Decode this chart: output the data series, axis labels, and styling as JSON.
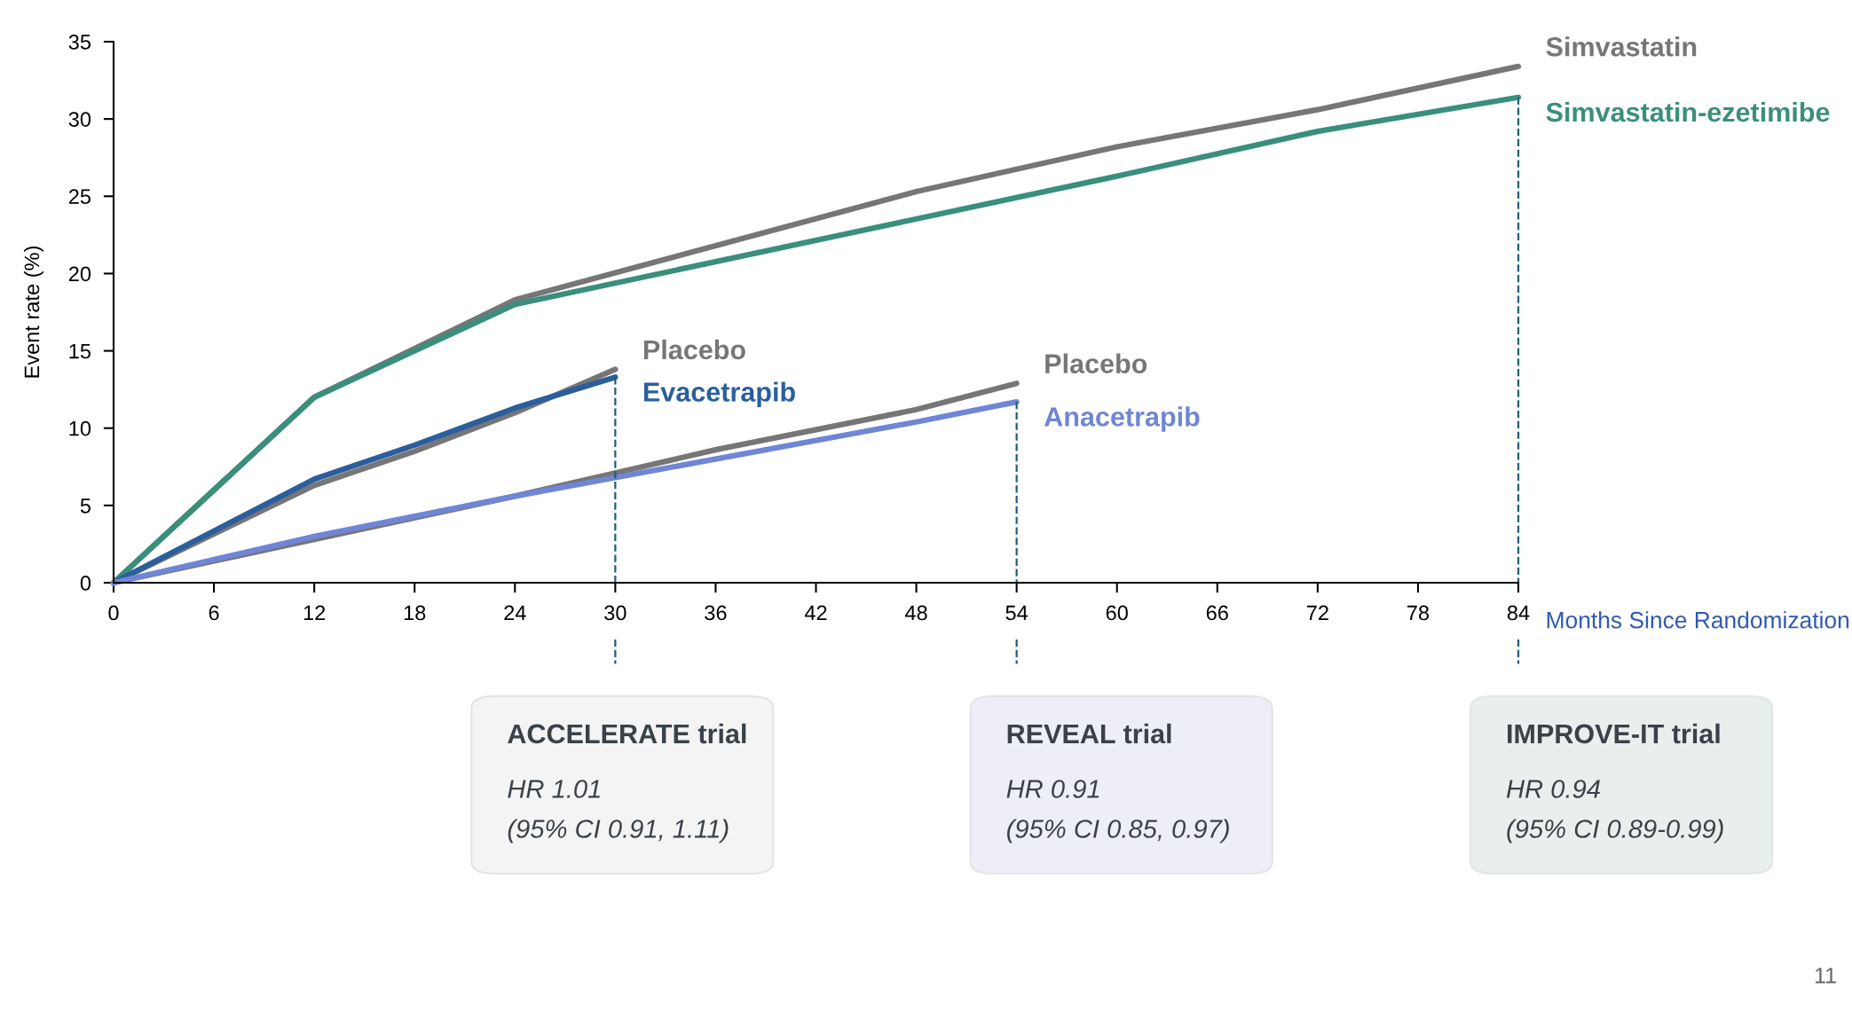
{
  "chart_data": {
    "type": "line",
    "xlabel": "Months Since Randomization",
    "ylabel": "Event rate (%)",
    "xlim": [
      0,
      84
    ],
    "xticks": [
      0,
      6,
      12,
      18,
      24,
      30,
      36,
      42,
      48,
      54,
      60,
      66,
      72,
      78,
      84
    ],
    "ylim": [
      0,
      35
    ],
    "yticks": [
      0,
      5,
      10,
      15,
      20,
      25,
      30,
      35
    ],
    "grid": false,
    "marker": "none",
    "line_style": "solid",
    "series": [
      {
        "name": "Simvastatin",
        "color": "#767676",
        "x": [
          0,
          12,
          24,
          48,
          60,
          72,
          84
        ],
        "values": [
          0,
          12,
          18.3,
          25.3,
          28.2,
          30.6,
          33.4
        ]
      },
      {
        "name": "Simvastatin-ezetimibe",
        "color": "#3a8f7c",
        "x": [
          0,
          12,
          24,
          60,
          72,
          84
        ],
        "values": [
          0,
          12,
          18.0,
          26.3,
          29.2,
          31.4
        ]
      },
      {
        "name": "Placebo",
        "color": "#767676",
        "x": [
          0,
          12,
          18,
          24,
          30
        ],
        "values": [
          0,
          6.3,
          8.5,
          11.0,
          13.8
        ]
      },
      {
        "name": "Evacetrapib",
        "color": "#2a5e9c",
        "x": [
          0,
          12,
          18,
          24,
          30
        ],
        "values": [
          0,
          6.7,
          8.9,
          11.3,
          13.3
        ]
      },
      {
        "name": "Placebo",
        "color": "#767676",
        "x": [
          0,
          24,
          30,
          36,
          48,
          54
        ],
        "values": [
          0,
          5.6,
          7.1,
          8.6,
          11.2,
          12.9
        ]
      },
      {
        "name": "Anacetrapib",
        "color": "#6f86d6",
        "x": [
          0,
          12,
          24,
          30,
          48,
          54
        ],
        "values": [
          0,
          3.0,
          5.6,
          6.8,
          10.4,
          11.7
        ]
      }
    ],
    "ref_lines": [
      {
        "axis": "x",
        "value": 30,
        "color": "#1f5f7a",
        "line_style": "dashed"
      },
      {
        "axis": "x",
        "value": 54,
        "color": "#1f5f7a",
        "line_style": "dashed"
      },
      {
        "axis": "x",
        "value": 84,
        "color": "#1f5f7a",
        "line_style": "dashed"
      }
    ],
    "annotations": [
      "ACCELERATE trial",
      "HR 1.01",
      "(95% CI 0.91, 1.11)",
      "REVEAL trial",
      "HR 0.91",
      "(95% CI 0.85, 0.97)",
      "IMPROVE-IT trial",
      "HR 0.94",
      "(95% CI 0.89-0.99)",
      "11"
    ]
  }
}
